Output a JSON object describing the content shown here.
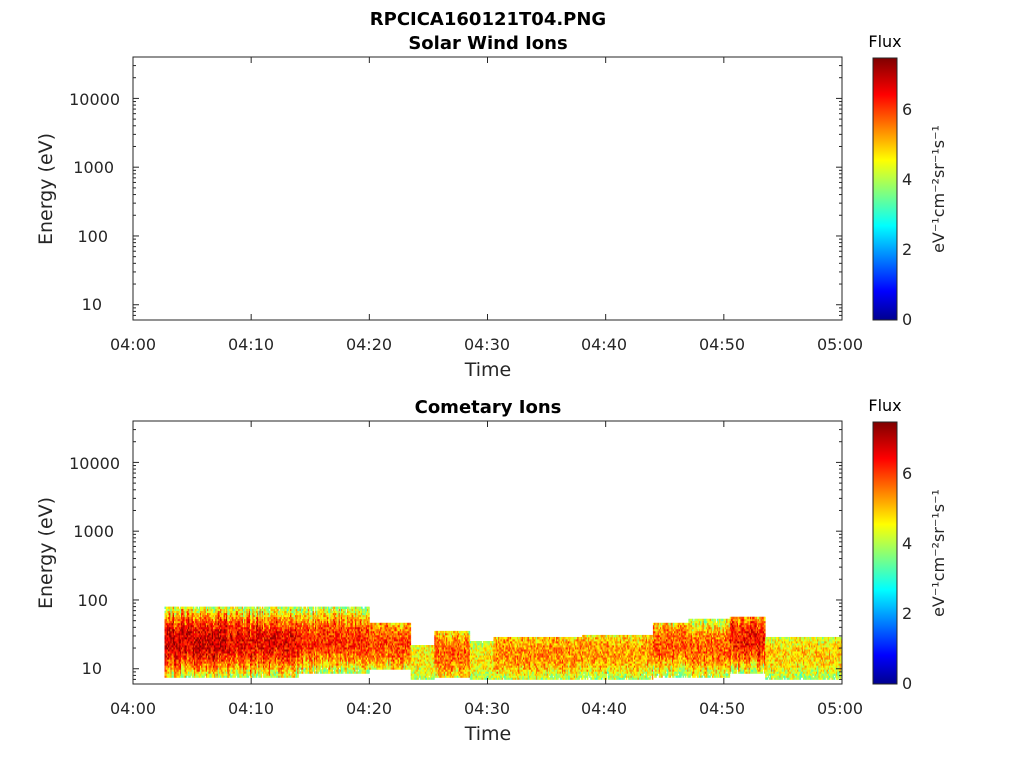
{
  "figure_title": "RPCICA160121T04.PNG",
  "colorbar": {
    "title": "Flux",
    "label": "eV⁻¹cm⁻²sr⁻¹s⁻¹",
    "ticks": [
      "0",
      "2",
      "4",
      "6"
    ],
    "range": [
      0,
      7.4
    ],
    "colormap": "jet"
  },
  "chart_data": [
    {
      "type": "heatmap",
      "title": "Solar Wind Ions",
      "xlabel": "Time",
      "ylabel": "Energy (eV)",
      "x_ticks": [
        "04:00",
        "04:10",
        "04:20",
        "04:30",
        "04:40",
        "04:50",
        "05:00"
      ],
      "y_ticks": [
        "10",
        "100",
        "1000",
        "10000"
      ],
      "y_scale": "log",
      "x_range": [
        "04:00",
        "05:00"
      ],
      "y_range": [
        6,
        40000
      ],
      "segments": []
    },
    {
      "type": "heatmap",
      "title": "Cometary Ions",
      "xlabel": "Time",
      "ylabel": "Energy (eV)",
      "x_ticks": [
        "04:00",
        "04:10",
        "04:20",
        "04:30",
        "04:40",
        "04:50",
        "05:00"
      ],
      "y_ticks": [
        "10",
        "100",
        "1000",
        "10000"
      ],
      "y_scale": "log",
      "x_range": [
        "04:00",
        "05:00"
      ],
      "y_range": [
        6,
        40000
      ],
      "segments": [
        {
          "t_start": "04:02:40",
          "t_end": "04:08:00",
          "emin": 8,
          "emax": 80,
          "peak_energy": 25,
          "peak_flux": 6.8
        },
        {
          "t_start": "04:08:00",
          "t_end": "04:14:00",
          "emin": 8,
          "emax": 80,
          "peak_energy": 24,
          "peak_flux": 6.6
        },
        {
          "t_start": "04:14:00",
          "t_end": "04:20:00",
          "emin": 9,
          "emax": 75,
          "peak_energy": 26,
          "peak_flux": 6.2
        },
        {
          "t_start": "04:20:00",
          "t_end": "04:23:30",
          "emin": 10,
          "emax": 45,
          "peak_energy": 24,
          "peak_flux": 6.0
        },
        {
          "t_start": "04:23:30",
          "t_end": "04:25:30",
          "emin": 7,
          "emax": 22,
          "peak_energy": 14,
          "peak_flux": 4.8
        },
        {
          "t_start": "04:25:30",
          "t_end": "04:28:30",
          "emin": 8,
          "emax": 35,
          "peak_energy": 17,
          "peak_flux": 5.8
        },
        {
          "t_start": "04:28:30",
          "t_end": "04:30:30",
          "emin": 7,
          "emax": 25,
          "peak_energy": 13,
          "peak_flux": 4.8
        },
        {
          "t_start": "04:30:30",
          "t_end": "04:38:00",
          "emin": 7,
          "emax": 28,
          "peak_energy": 17,
          "peak_flux": 5.5
        },
        {
          "t_start": "04:38:00",
          "t_end": "04:44:00",
          "emin": 7,
          "emax": 30,
          "peak_energy": 17,
          "peak_flux": 5.4
        },
        {
          "t_start": "04:44:00",
          "t_end": "04:47:00",
          "emin": 8,
          "emax": 45,
          "peak_energy": 22,
          "peak_flux": 5.9
        },
        {
          "t_start": "04:47:00",
          "t_end": "04:50:30",
          "emin": 8,
          "emax": 50,
          "peak_energy": 20,
          "peak_flux": 5.8
        },
        {
          "t_start": "04:50:30",
          "t_end": "04:53:30",
          "emin": 9,
          "emax": 55,
          "peak_energy": 27,
          "peak_flux": 6.4
        },
        {
          "t_start": "04:53:30",
          "t_end": "05:00:00",
          "emin": 7,
          "emax": 28,
          "peak_energy": 15,
          "peak_flux": 5.0
        }
      ]
    }
  ]
}
